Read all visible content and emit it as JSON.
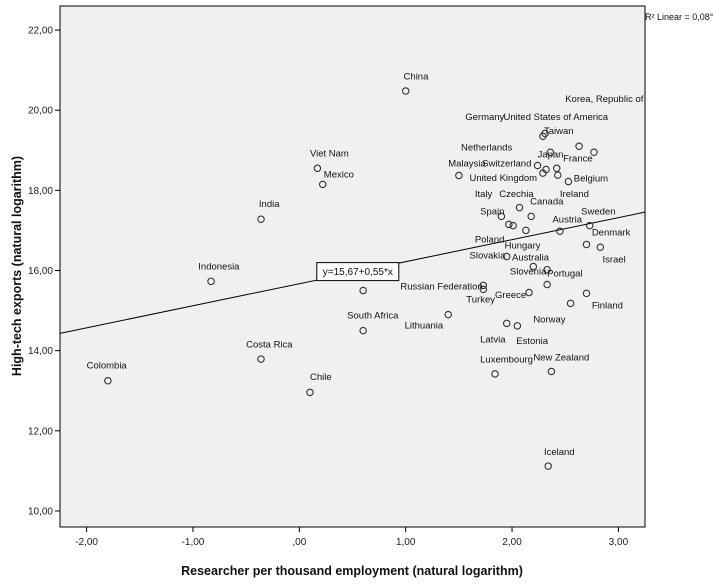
{
  "chart_data": {
    "type": "scatter",
    "title": "",
    "xlabel": "Researcher per thousand employment (natural logarithm)",
    "ylabel": "High-tech exports (natural logarithm)",
    "xlim": [
      -2.25,
      3.25
    ],
    "ylim": [
      9.6,
      22.6
    ],
    "x_ticks": [
      -2,
      -1,
      0,
      1,
      2,
      3
    ],
    "x_tick_labels": [
      "-2,00",
      "-1,00",
      ",00",
      "1,00",
      "2,00",
      "3,00"
    ],
    "y_ticks": [
      10,
      12,
      14,
      16,
      18,
      20,
      22
    ],
    "y_tick_labels": [
      "10,00",
      "12,00",
      "14,00",
      "16,00",
      "18,00",
      "20,00",
      "22,00"
    ],
    "grid": false,
    "fit_line": {
      "intercept": 15.67,
      "slope": 0.55,
      "label": "y=15,67+0,55*x",
      "label_x": 0.55
    },
    "r2_label": "R² Linear = 0,08°",
    "points": [
      {
        "x": -1.8,
        "y": 13.25
      },
      {
        "x": -0.83,
        "y": 15.73
      },
      {
        "x": -0.36,
        "y": 17.28
      },
      {
        "x": -0.36,
        "y": 13.79
      },
      {
        "x": 0.1,
        "y": 12.96
      },
      {
        "x": 0.17,
        "y": 18.55
      },
      {
        "x": 0.22,
        "y": 18.15
      },
      {
        "x": 0.6,
        "y": 15.5
      },
      {
        "x": 0.6,
        "y": 14.5
      },
      {
        "x": 1.0,
        "y": 20.48
      },
      {
        "x": 1.4,
        "y": 14.9
      },
      {
        "x": 1.5,
        "y": 18.37
      },
      {
        "x": 1.73,
        "y": 15.63
      },
      {
        "x": 1.73,
        "y": 15.53
      },
      {
        "x": 1.84,
        "y": 13.42
      },
      {
        "x": 1.9,
        "y": 17.35
      },
      {
        "x": 1.95,
        "y": 16.35
      },
      {
        "x": 1.95,
        "y": 14.68
      },
      {
        "x": 1.97,
        "y": 17.15
      },
      {
        "x": 2.01,
        "y": 17.12
      },
      {
        "x": 2.05,
        "y": 14.62
      },
      {
        "x": 2.07,
        "y": 17.57
      },
      {
        "x": 2.13,
        "y": 17.0
      },
      {
        "x": 2.16,
        "y": 15.45
      },
      {
        "x": 2.18,
        "y": 17.35
      },
      {
        "x": 2.2,
        "y": 16.1
      },
      {
        "x": 2.24,
        "y": 18.62
      },
      {
        "x": 2.29,
        "y": 18.43
      },
      {
        "x": 2.29,
        "y": 19.35
      },
      {
        "x": 2.31,
        "y": 19.42
      },
      {
        "x": 2.32,
        "y": 18.52
      },
      {
        "x": 2.33,
        "y": 15.65
      },
      {
        "x": 2.33,
        "y": 16.02
      },
      {
        "x": 2.34,
        "y": 11.12
      },
      {
        "x": 2.36,
        "y": 18.95
      },
      {
        "x": 2.37,
        "y": 13.48
      },
      {
        "x": 2.42,
        "y": 18.55
      },
      {
        "x": 2.43,
        "y": 18.38
      },
      {
        "x": 2.45,
        "y": 16.98
      },
      {
        "x": 2.53,
        "y": 18.22
      },
      {
        "x": 2.55,
        "y": 15.18
      },
      {
        "x": 2.63,
        "y": 19.1
      },
      {
        "x": 2.7,
        "y": 16.65
      },
      {
        "x": 2.7,
        "y": 15.43
      },
      {
        "x": 2.73,
        "y": 17.12
      },
      {
        "x": 2.77,
        "y": 18.95
      },
      {
        "x": 2.83,
        "y": 16.58
      }
    ],
    "labels": [
      {
        "text": "Colombia",
        "x": -2.0,
        "y": 13.55
      },
      {
        "text": "Indonesia",
        "x": -0.95,
        "y": 16.03
      },
      {
        "text": "India",
        "x": -0.38,
        "y": 17.58
      },
      {
        "text": "Costa Rica",
        "x": -0.5,
        "y": 14.08
      },
      {
        "text": "Chile",
        "x": 0.1,
        "y": 13.27
      },
      {
        "text": "Viet Nam",
        "x": 0.1,
        "y": 18.85
      },
      {
        "text": "Mexico",
        "x": 0.23,
        "y": 18.32
      },
      {
        "text": "South Africa",
        "x": 0.45,
        "y": 14.8
      },
      {
        "text": "Lithuania",
        "x": 0.99,
        "y": 14.55
      },
      {
        "text": "China",
        "x": 0.98,
        "y": 20.77
      },
      {
        "text": "Malaysia",
        "x": 1.4,
        "y": 18.6
      },
      {
        "text": "Russian Federation",
        "x": 0.95,
        "y": 15.53
      },
      {
        "text": "Turkey",
        "x": 1.57,
        "y": 15.2
      },
      {
        "text": "Luxembourg",
        "x": 1.7,
        "y": 13.7
      },
      {
        "text": "Latvia",
        "x": 1.7,
        "y": 14.2
      },
      {
        "text": "Greece",
        "x": 1.84,
        "y": 15.32
      },
      {
        "text": "Estonia",
        "x": 2.04,
        "y": 14.16
      },
      {
        "text": "Slovenia",
        "x": 1.98,
        "y": 15.9
      },
      {
        "text": "Slovakia",
        "x": 1.6,
        "y": 16.3
      },
      {
        "text": "Poland",
        "x": 1.65,
        "y": 16.7
      },
      {
        "text": "Hungary",
        "x": 1.93,
        "y": 16.55
      },
      {
        "text": "Spain",
        "x": 1.7,
        "y": 17.4
      },
      {
        "text": "Italy",
        "x": 1.65,
        "y": 17.83
      },
      {
        "text": "Czechia",
        "x": 1.88,
        "y": 17.83
      },
      {
        "text": "Canada",
        "x": 2.17,
        "y": 17.65
      },
      {
        "text": "Australia",
        "x": 2.0,
        "y": 16.25
      },
      {
        "text": "Portugal",
        "x": 2.33,
        "y": 15.85
      },
      {
        "text": "Austria",
        "x": 2.38,
        "y": 17.2
      },
      {
        "text": "Sweden",
        "x": 2.65,
        "y": 17.4
      },
      {
        "text": "Denmark",
        "x": 2.75,
        "y": 16.87
      },
      {
        "text": "Israel",
        "x": 2.85,
        "y": 16.2
      },
      {
        "text": "Finland",
        "x": 2.75,
        "y": 15.05
      },
      {
        "text": "Norway",
        "x": 2.2,
        "y": 14.7
      },
      {
        "text": "New Zealand",
        "x": 2.2,
        "y": 13.75
      },
      {
        "text": "Iceland",
        "x": 2.3,
        "y": 11.4
      },
      {
        "text": "Ireland",
        "x": 2.45,
        "y": 17.83
      },
      {
        "text": "Belgium",
        "x": 2.58,
        "y": 18.22
      },
      {
        "text": "France",
        "x": 2.48,
        "y": 18.72
      },
      {
        "text": "Japan",
        "x": 2.24,
        "y": 18.82
      },
      {
        "text": "Switzerland",
        "x": 1.72,
        "y": 18.6
      },
      {
        "text": "United Kingdom",
        "x": 1.6,
        "y": 18.23
      },
      {
        "text": "Netherlands",
        "x": 1.52,
        "y": 19.0
      },
      {
        "text": "Taiwan",
        "x": 2.3,
        "y": 19.4
      },
      {
        "text": "Germany",
        "x": 1.56,
        "y": 19.75
      },
      {
        "text": "United States of America",
        "x": 1.92,
        "y": 19.75
      },
      {
        "text": "Korea, Republic of",
        "x": 2.5,
        "y": 20.2
      }
    ]
  }
}
